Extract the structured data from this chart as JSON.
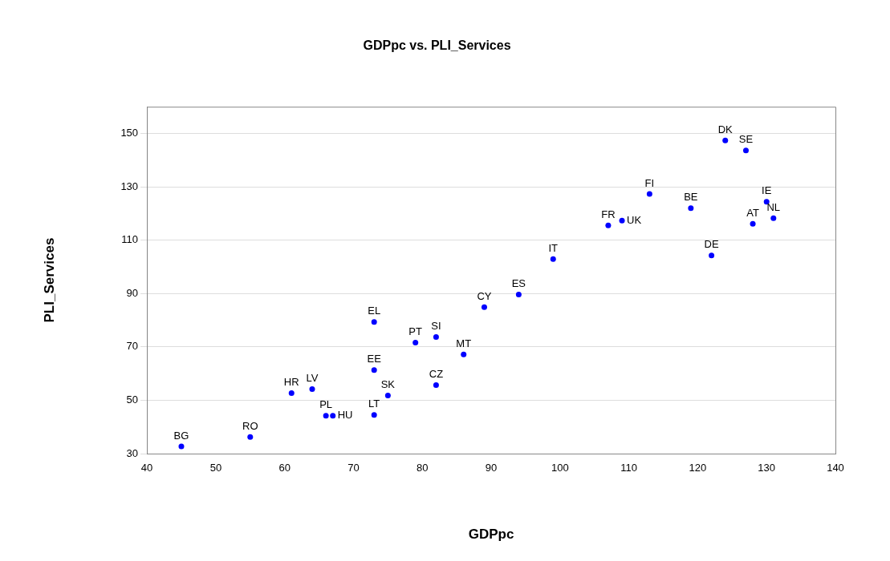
{
  "chart_data": {
    "type": "scatter",
    "title": "GDPpc vs. PLI_Services",
    "xlabel": "GDPpc",
    "ylabel": "PLI_Services",
    "series": [
      {
        "color": "#0000ff",
        "x": [
          45,
          55,
          61,
          64,
          66,
          67,
          73,
          73,
          73,
          75,
          79,
          82,
          82,
          86,
          89,
          94,
          99,
          107,
          109,
          113,
          119,
          122,
          128,
          130,
          131,
          124,
          127
        ],
        "values": [
          32.7,
          36.2,
          52.7,
          54.2,
          44.2,
          44.2,
          44.5,
          61.3,
          79.3,
          51.8,
          71.6,
          73.7,
          55.7,
          67.2,
          84.9,
          89.6,
          102.9,
          115.5,
          117.3,
          127.3,
          122,
          104.3,
          116.1,
          124.4,
          118.2,
          147.4,
          143.6
        ]
      }
    ],
    "annotations": [
      {
        "text": "BG",
        "x": 45,
        "y": 32.7
      },
      {
        "text": "RO",
        "x": 55,
        "y": 36.2
      },
      {
        "text": "HR",
        "x": 61,
        "y": 52.7
      },
      {
        "text": "LV",
        "x": 64,
        "y": 54.2
      },
      {
        "text": "PL",
        "x": 66,
        "y": 44.2
      },
      {
        "text": "HU",
        "x": 67,
        "y": 44.2
      },
      {
        "text": "LT",
        "x": 73,
        "y": 44.5
      },
      {
        "text": "EE",
        "x": 73,
        "y": 61.3
      },
      {
        "text": "EL",
        "x": 73,
        "y": 79.3
      },
      {
        "text": "SK",
        "x": 75,
        "y": 51.8
      },
      {
        "text": "PT",
        "x": 79,
        "y": 71.6
      },
      {
        "text": "SI",
        "x": 82,
        "y": 73.7
      },
      {
        "text": "CZ",
        "x": 82,
        "y": 55.7
      },
      {
        "text": "MT",
        "x": 86,
        "y": 67.2
      },
      {
        "text": "CY",
        "x": 89,
        "y": 84.9
      },
      {
        "text": "ES",
        "x": 94,
        "y": 89.6
      },
      {
        "text": "IT",
        "x": 99,
        "y": 102.9
      },
      {
        "text": "FR",
        "x": 107,
        "y": 115.5
      },
      {
        "text": "UK",
        "x": 109,
        "y": 117.3
      },
      {
        "text": "FI",
        "x": 113,
        "y": 127.3
      },
      {
        "text": "BE",
        "x": 119,
        "y": 122
      },
      {
        "text": "DE",
        "x": 122,
        "y": 104.3
      },
      {
        "text": "AT",
        "x": 128,
        "y": 116.1
      },
      {
        "text": "IE",
        "x": 130,
        "y": 124.4
      },
      {
        "text": "NL",
        "x": 131,
        "y": 118.2
      },
      {
        "text": "DK",
        "x": 124,
        "y": 147.4
      },
      {
        "text": "SE",
        "x": 127,
        "y": 143.6
      }
    ],
    "xlim": [
      40,
      140
    ],
    "xticks": [
      40,
      50,
      60,
      70,
      80,
      90,
      100,
      110,
      120,
      130,
      140
    ],
    "ylim": [
      30,
      160
    ],
    "yticks": [
      30,
      50,
      70,
      90,
      110,
      130,
      150
    ],
    "grid": "y",
    "legend": false,
    "marker": "circle"
  }
}
